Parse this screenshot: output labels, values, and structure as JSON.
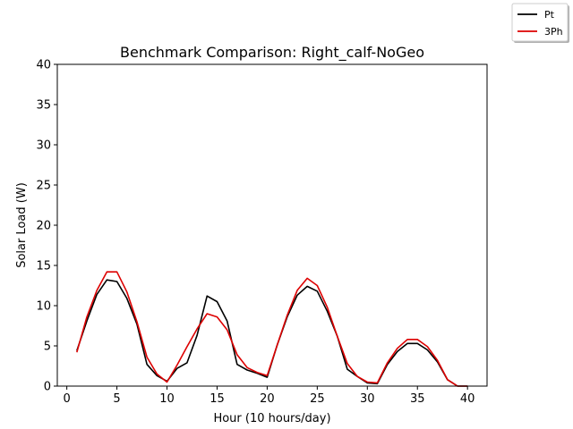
{
  "chart_data": {
    "type": "line",
    "title": "Benchmark Comparison: Right_calf-NoGeo",
    "xlabel": "Hour (10 hours/day)",
    "ylabel": "Solar Load (W)",
    "xlim": [
      -0.95,
      41.95
    ],
    "ylim": [
      0,
      40
    ],
    "xticks": [
      0,
      5,
      10,
      15,
      20,
      25,
      30,
      35,
      40
    ],
    "yticks": [
      0,
      5,
      10,
      15,
      20,
      25,
      30,
      35,
      40
    ],
    "grid": false,
    "legend_position": "top-right",
    "x": [
      1,
      2,
      3,
      4,
      5,
      6,
      7,
      8,
      9,
      10,
      11,
      12,
      13,
      14,
      15,
      16,
      17,
      18,
      19,
      20,
      21,
      22,
      23,
      24,
      25,
      26,
      27,
      28,
      29,
      30,
      31,
      32,
      33,
      34,
      35,
      36,
      37,
      38,
      39,
      40
    ],
    "series": [
      {
        "name": "Pt",
        "color": "#000000",
        "values": [
          4.4,
          8.1,
          11.4,
          13.2,
          13.0,
          10.9,
          7.7,
          2.7,
          1.3,
          0.6,
          2.2,
          2.9,
          6.3,
          11.2,
          10.5,
          8.1,
          2.7,
          2.0,
          1.6,
          1.1,
          5.1,
          8.6,
          11.3,
          12.4,
          11.8,
          9.3,
          6.2,
          2.1,
          1.2,
          0.4,
          0.3,
          2.7,
          4.3,
          5.3,
          5.3,
          4.5,
          3.0,
          0.8,
          0.0,
          0.0
        ]
      },
      {
        "name": "3Ph",
        "color": "#dd0000",
        "values": [
          4.2,
          8.6,
          11.9,
          14.2,
          14.2,
          11.7,
          8.0,
          3.6,
          1.5,
          0.5,
          2.6,
          4.9,
          7.1,
          9.0,
          8.6,
          7.0,
          3.9,
          2.3,
          1.7,
          1.3,
          5.1,
          8.8,
          11.9,
          13.4,
          12.5,
          9.8,
          6.2,
          2.8,
          1.2,
          0.5,
          0.4,
          2.9,
          4.7,
          5.8,
          5.8,
          4.9,
          3.2,
          0.8,
          0.0,
          0.0
        ]
      }
    ]
  }
}
